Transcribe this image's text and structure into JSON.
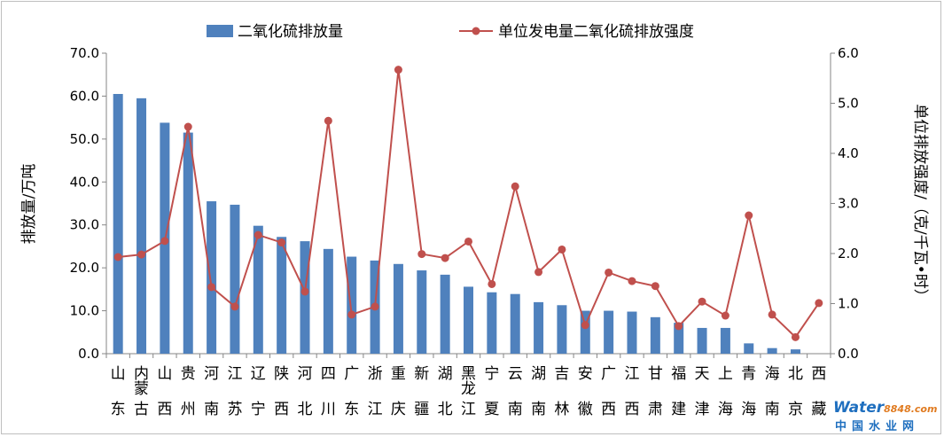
{
  "chart_data": {
    "type": "bar",
    "categories": [
      "山东",
      "内蒙古",
      "山西",
      "贵州",
      "河南",
      "江苏",
      "辽宁",
      "陕西",
      "河北",
      "四川",
      "广东",
      "浙江",
      "重庆",
      "新疆",
      "湖北",
      "黑龙江",
      "宁夏",
      "云南",
      "湖南",
      "吉林",
      "安徽",
      "广西",
      "江西",
      "甘肃",
      "福建",
      "天津",
      "上海",
      "青海",
      "海南",
      "北京",
      "西藏"
    ],
    "category_labels": [
      [
        "山",
        "东"
      ],
      [
        "内",
        "蒙",
        "古"
      ],
      [
        "山",
        "西"
      ],
      [
        "贵",
        "州"
      ],
      [
        "河",
        "南"
      ],
      [
        "江",
        "苏"
      ],
      [
        "辽",
        "宁"
      ],
      [
        "陕",
        "西"
      ],
      [
        "河",
        "北"
      ],
      [
        "四",
        "川"
      ],
      [
        "广",
        "东"
      ],
      [
        "浙",
        "江"
      ],
      [
        "重",
        "庆"
      ],
      [
        "新",
        "疆"
      ],
      [
        "湖",
        "北"
      ],
      [
        "黑",
        "龙",
        "江"
      ],
      [
        "宁",
        "夏"
      ],
      [
        "云",
        "南"
      ],
      [
        "湖",
        "南"
      ],
      [
        "吉",
        "林"
      ],
      [
        "安",
        "徽"
      ],
      [
        "广",
        "西"
      ],
      [
        "江",
        "西"
      ],
      [
        "甘",
        "肃"
      ],
      [
        "福",
        "建"
      ],
      [
        "天",
        "津"
      ],
      [
        "上",
        "海"
      ],
      [
        "青",
        "海"
      ],
      [
        "海",
        "南"
      ],
      [
        "北",
        "京"
      ],
      [
        "西",
        "藏"
      ]
    ],
    "series": [
      {
        "name": "二氧化硫排放量",
        "type": "bar",
        "axis": "left",
        "color": "#4f81bd",
        "values": [
          60.5,
          59.5,
          53.8,
          51.5,
          35.5,
          34.7,
          29.8,
          27.2,
          26.2,
          24.4,
          22.6,
          21.7,
          20.9,
          19.4,
          18.4,
          15.6,
          14.3,
          13.9,
          12.0,
          11.3,
          10.0,
          10.0,
          9.8,
          8.5,
          7.2,
          6.0,
          6.0,
          2.4,
          1.3,
          1.0,
          0.0
        ]
      },
      {
        "name": "单位发电量二氧化硫排放强度",
        "type": "line",
        "axis": "right",
        "color": "#c0504d",
        "values": [
          1.93,
          1.98,
          2.25,
          4.53,
          1.33,
          0.94,
          2.37,
          2.22,
          1.24,
          4.65,
          0.78,
          0.94,
          5.67,
          1.99,
          1.91,
          2.24,
          1.39,
          3.34,
          1.63,
          2.08,
          0.57,
          1.62,
          1.45,
          1.35,
          0.55,
          1.04,
          0.76,
          2.76,
          0.78,
          0.33,
          1.01
        ]
      }
    ],
    "ylabel": "排放量/万吨",
    "ylabel2": "单位排放强度/（克/千瓦•时）",
    "ylim": [
      0,
      70
    ],
    "ylim2": [
      0,
      6
    ],
    "yticks": [
      "0.0",
      "10.0",
      "20.0",
      "30.0",
      "40.0",
      "50.0",
      "60.0",
      "70.0"
    ],
    "yticks2": [
      "0.0",
      "1.0",
      "2.0",
      "3.0",
      "4.0",
      "5.0",
      "6.0"
    ],
    "legend_position": "top",
    "grid": false
  },
  "watermark": {
    "brand": "Water",
    "brand_num": "8848",
    "brand_suffix": ".com",
    "subtitle": "中国水业网"
  }
}
